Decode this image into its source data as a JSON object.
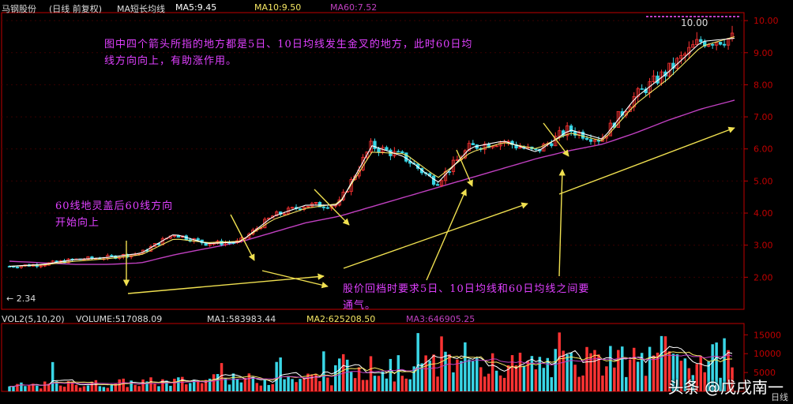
{
  "header": {
    "stock_name": "马钢股份",
    "mode": "(日线 前复权)",
    "indicator": "MA短长均线",
    "ma5": "MA5:9.45",
    "ma10": "MA10:9.50",
    "ma60": "MA60:7.52"
  },
  "volume_header": {
    "name": "VOL2(5,10,20)",
    "volume": "VOLUME:517088.09",
    "ma1": "MA1:583983.44",
    "ma2": "MA2:625208.50",
    "ma3": "MA3:646905.25"
  },
  "annotations": {
    "top": "图中四个箭头所指的地方都是5日、10日均线发生金叉的地方，此时60日均线方向向上，有助涨作用。",
    "left": "60线地灵盖后60线方向开始向上",
    "bottom": "股价回档时要求5日、10日均线和60日均线之间要通气。"
  },
  "labels": {
    "high_price": "10.00",
    "low_price": "2.34",
    "period": "日线"
  },
  "watermark": "头条 @戊戌南一",
  "colors": {
    "up": "#ff3333",
    "down": "#39d6e6",
    "ma5": "#ffffff",
    "ma10": "#f5e663",
    "ma60": "#c040c0",
    "annotation": "#e040ff",
    "arrow": "#f0e050",
    "axis": "#c00000"
  },
  "chart_data": [
    {
      "type": "candlestick",
      "title": "",
      "y_ticks": [
        2.0,
        3.0,
        4.0,
        5.0,
        6.0,
        7.0,
        8.0,
        9.0,
        10.0
      ],
      "ylim": [
        1.0,
        10.2
      ],
      "series": [
        {
          "name": "MA5",
          "values": [
            2.34,
            2.4,
            2.55,
            2.62,
            2.75,
            3.35,
            3.05,
            3.1,
            3.9,
            4.25,
            4.25,
            6.1,
            5.75,
            4.95,
            6.05,
            6.25,
            5.9,
            6.6,
            6.3,
            7.6,
            8.4,
            9.35,
            9.45
          ]
        },
        {
          "name": "MA10",
          "values": [
            2.34,
            2.38,
            2.5,
            2.58,
            2.7,
            3.2,
            3.08,
            3.12,
            3.8,
            4.15,
            4.3,
            5.9,
            5.85,
            5.1,
            5.9,
            6.2,
            6.0,
            6.5,
            6.25,
            7.4,
            8.2,
            9.2,
            9.5
          ]
        },
        {
          "name": "MA60",
          "values": [
            2.5,
            2.45,
            2.4,
            2.4,
            2.45,
            2.7,
            2.9,
            3.1,
            3.4,
            3.7,
            3.9,
            4.2,
            4.5,
            4.8,
            5.1,
            5.4,
            5.7,
            5.95,
            6.15,
            6.5,
            6.9,
            7.25,
            7.52
          ]
        }
      ],
      "annotated_values": {
        "high": 10.0,
        "low": 2.34
      }
    },
    {
      "type": "bar",
      "title": "",
      "y_ticks": [
        5000,
        10000,
        15000
      ],
      "y_tick_labels": [
        "5000",
        "10000",
        "15000"
      ],
      "note": "volume bars in ten-thousands"
    }
  ]
}
